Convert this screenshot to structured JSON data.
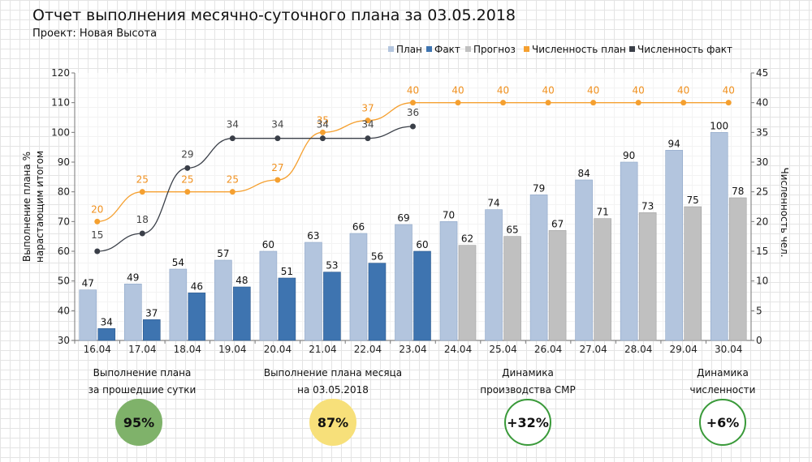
{
  "header": {
    "title": "Отчет выполнения месячно-суточного плана за 03.05.2018",
    "subtitle": "Проект: Новая Высота"
  },
  "chart_data": {
    "type": "bar",
    "categories": [
      "16.04",
      "17.04",
      "18.04",
      "19.04",
      "20.04",
      "21.04",
      "22.04",
      "23.04",
      "24.04",
      "25.04",
      "26.04",
      "27.04",
      "28.04",
      "29.04",
      "30.04"
    ],
    "ylabel": "Выполнение плана % нарастающим итогом",
    "ylabel_lines": [
      "Выполнение плана %",
      "нарастающим итогом"
    ],
    "y2label": "Численность чел.",
    "ylim": [
      30,
      120
    ],
    "yticks": [
      30,
      40,
      50,
      60,
      70,
      80,
      90,
      100,
      110,
      120
    ],
    "y2lim": [
      0,
      45
    ],
    "y2ticks": [
      0,
      5,
      10,
      15,
      20,
      25,
      30,
      35,
      40,
      45
    ],
    "legend_position": "top-right",
    "grid": true,
    "series": [
      {
        "name": "План",
        "kind": "bar",
        "axis": "left",
        "color": "#b3c5de",
        "values": [
          47,
          49,
          54,
          57,
          60,
          63,
          66,
          69,
          70,
          74,
          79,
          84,
          90,
          94,
          100
        ]
      },
      {
        "name": "Факт",
        "kind": "bar",
        "axis": "left",
        "color": "#3e74b0",
        "values": [
          34,
          37,
          46,
          48,
          51,
          53,
          56,
          60,
          null,
          null,
          null,
          null,
          null,
          null,
          null
        ]
      },
      {
        "name": "Прогноз",
        "kind": "bar",
        "axis": "left",
        "color": "#c0c0c0",
        "values": [
          null,
          null,
          null,
          null,
          null,
          null,
          null,
          null,
          62,
          65,
          67,
          71,
          73,
          75,
          78
        ]
      },
      {
        "name": "Численность план",
        "kind": "line",
        "axis": "right",
        "color": "#f5a030",
        "values": [
          20,
          25,
          25,
          25,
          27,
          35,
          37,
          40,
          40,
          40,
          40,
          40,
          40,
          40,
          40
        ]
      },
      {
        "name": "Численность факт",
        "kind": "line",
        "axis": "right",
        "color": "#3a3f48",
        "values": [
          15,
          18,
          29,
          34,
          34,
          34,
          34,
          36,
          null,
          null,
          null,
          null,
          null,
          null,
          null
        ]
      }
    ]
  },
  "kpis": [
    {
      "label_lines": [
        "Выполнение плана",
        "за прошедшие сутки"
      ],
      "value": "95%",
      "fill": "#7fb26a",
      "border": "#7fb26a",
      "text_color": "#111111"
    },
    {
      "label_lines": [
        "Выполнение плана месяца",
        "на 03.05.2018"
      ],
      "value": "87%",
      "fill": "#f7e07a",
      "border": "#f7e07a",
      "text_color": "#111111"
    },
    {
      "label_lines": [
        "Динамика",
        "производства СМР"
      ],
      "value": "+32%",
      "fill": "#ffffff",
      "border": "#3a9a3a",
      "text_color": "#111111"
    },
    {
      "label_lines": [
        "Динамика",
        "численности"
      ],
      "value": "+6%",
      "fill": "#ffffff",
      "border": "#3a9a3a",
      "text_color": "#111111"
    }
  ]
}
